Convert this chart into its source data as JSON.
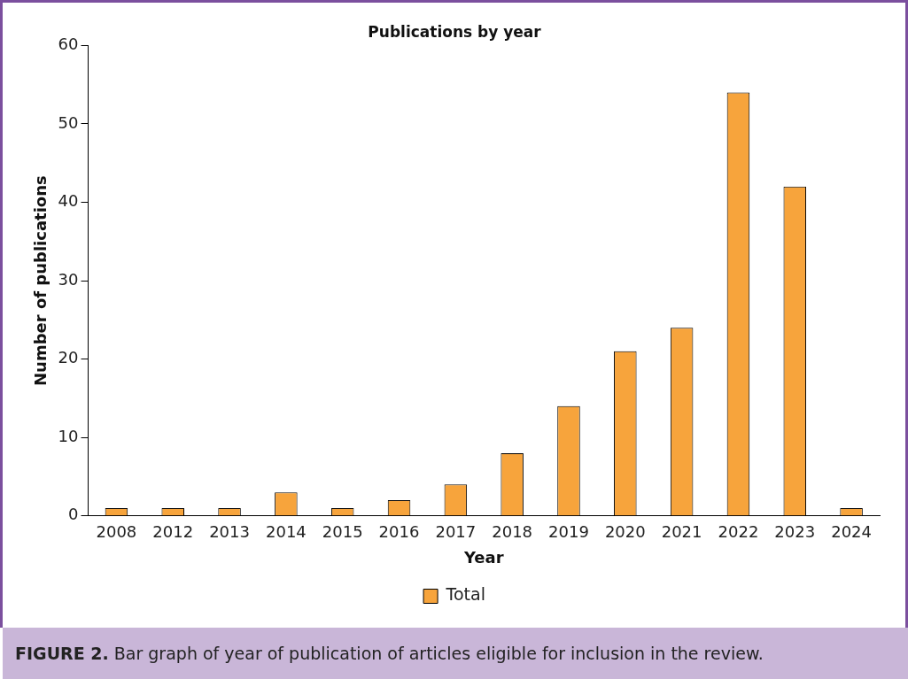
{
  "chart_data": {
    "type": "bar",
    "title": "Publications by year",
    "xlabel": "Year",
    "ylabel": "Number of publications",
    "categories": [
      "2008",
      "2012",
      "2013",
      "2014",
      "2015",
      "2016",
      "2017",
      "2018",
      "2019",
      "2020",
      "2021",
      "2022",
      "2023",
      "2024"
    ],
    "series": [
      {
        "name": "Total",
        "color": "#f7a43c",
        "values": [
          1,
          1,
          1,
          3,
          1,
          2,
          4,
          8,
          14,
          21,
          24,
          54,
          42,
          1
        ]
      }
    ],
    "ylim": [
      0,
      60
    ],
    "yticks": [
      0,
      10,
      20,
      30,
      40,
      50,
      60
    ],
    "grid": false,
    "legend": "bottom",
    "annotations": [
      "FIGURE 2. Bar graph of year of publication of articles eligible for inclusion in the review."
    ]
  }
}
